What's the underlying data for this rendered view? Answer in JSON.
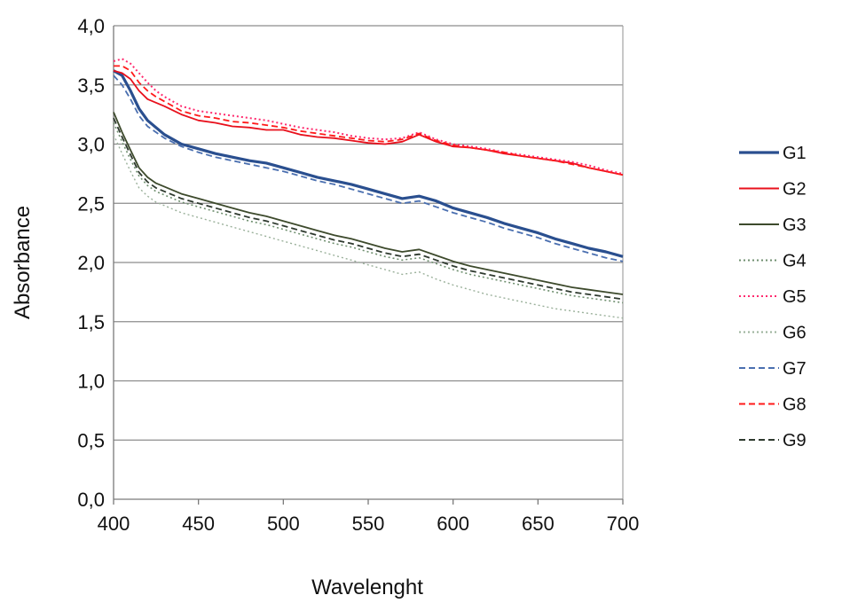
{
  "chart_data": {
    "type": "line",
    "xlabel": "Wavelenght",
    "ylabel": "Absorbance",
    "xlim": [
      400,
      700
    ],
    "ylim": [
      0.0,
      4.0
    ],
    "x_ticks": [
      400,
      450,
      500,
      550,
      600,
      650,
      700
    ],
    "y_ticks": [
      0.0,
      0.5,
      1.0,
      1.5,
      2.0,
      2.5,
      3.0,
      3.5,
      4.0
    ],
    "y_tick_labels": [
      "0,0",
      "0,5",
      "1,0",
      "1,5",
      "2,0",
      "2,5",
      "3,0",
      "3,5",
      "4,0"
    ],
    "grid": "horizontal",
    "legend_position": "right",
    "x": [
      400,
      405,
      410,
      415,
      420,
      425,
      430,
      440,
      450,
      460,
      470,
      480,
      490,
      500,
      510,
      520,
      530,
      540,
      550,
      560,
      570,
      580,
      590,
      600,
      610,
      620,
      630,
      640,
      650,
      660,
      670,
      680,
      690,
      700
    ],
    "series": [
      {
        "name": "G1",
        "color": "#2a4f8f",
        "dash": "solid",
        "width": 3.2,
        "values": [
          3.62,
          3.58,
          3.45,
          3.3,
          3.2,
          3.14,
          3.08,
          3.0,
          2.96,
          2.92,
          2.89,
          2.86,
          2.84,
          2.8,
          2.76,
          2.72,
          2.69,
          2.66,
          2.62,
          2.58,
          2.54,
          2.56,
          2.52,
          2.46,
          2.42,
          2.38,
          2.33,
          2.29,
          2.25,
          2.2,
          2.16,
          2.12,
          2.09,
          2.05
        ]
      },
      {
        "name": "G2",
        "color": "#e8101c",
        "dash": "solid",
        "width": 1.8,
        "values": [
          3.62,
          3.6,
          3.55,
          3.45,
          3.38,
          3.35,
          3.32,
          3.25,
          3.2,
          3.18,
          3.15,
          3.14,
          3.12,
          3.12,
          3.08,
          3.06,
          3.05,
          3.03,
          3.01,
          3.0,
          3.02,
          3.08,
          3.02,
          2.98,
          2.97,
          2.95,
          2.92,
          2.9,
          2.88,
          2.86,
          2.84,
          2.8,
          2.77,
          2.74
        ]
      },
      {
        "name": "G3",
        "color": "#3d4a2c",
        "dash": "solid",
        "width": 1.8,
        "values": [
          3.27,
          3.1,
          2.95,
          2.8,
          2.72,
          2.67,
          2.64,
          2.58,
          2.54,
          2.5,
          2.46,
          2.42,
          2.39,
          2.35,
          2.31,
          2.27,
          2.23,
          2.2,
          2.16,
          2.12,
          2.09,
          2.11,
          2.06,
          2.01,
          1.97,
          1.94,
          1.91,
          1.88,
          1.85,
          1.82,
          1.79,
          1.77,
          1.75,
          1.73
        ]
      },
      {
        "name": "G4",
        "color": "#6f8f6f",
        "dash": "dotted",
        "width": 1.6,
        "values": [
          3.18,
          3.02,
          2.87,
          2.73,
          2.65,
          2.6,
          2.57,
          2.51,
          2.47,
          2.43,
          2.39,
          2.35,
          2.32,
          2.28,
          2.24,
          2.2,
          2.16,
          2.13,
          2.09,
          2.05,
          2.02,
          2.04,
          1.99,
          1.94,
          1.9,
          1.87,
          1.84,
          1.81,
          1.78,
          1.75,
          1.72,
          1.7,
          1.68,
          1.66
        ]
      },
      {
        "name": "G5",
        "color": "#ff2a6e",
        "dash": "dotted",
        "width": 2.0,
        "values": [
          3.7,
          3.72,
          3.68,
          3.6,
          3.52,
          3.45,
          3.4,
          3.32,
          3.28,
          3.26,
          3.24,
          3.22,
          3.2,
          3.17,
          3.14,
          3.12,
          3.1,
          3.07,
          3.05,
          3.04,
          3.05,
          3.1,
          3.04,
          3.0,
          2.98,
          2.96,
          2.93,
          2.91,
          2.89,
          2.87,
          2.85,
          2.82,
          2.78,
          2.75
        ]
      },
      {
        "name": "G6",
        "color": "#9ab09a",
        "dash": "dotted",
        "width": 1.4,
        "values": [
          3.08,
          2.92,
          2.77,
          2.63,
          2.56,
          2.51,
          2.48,
          2.42,
          2.38,
          2.34,
          2.3,
          2.26,
          2.22,
          2.18,
          2.14,
          2.1,
          2.06,
          2.02,
          1.98,
          1.94,
          1.9,
          1.92,
          1.86,
          1.81,
          1.77,
          1.73,
          1.7,
          1.67,
          1.64,
          1.61,
          1.59,
          1.57,
          1.55,
          1.53
        ]
      },
      {
        "name": "G7",
        "color": "#4a6fb0",
        "dash": "dashed",
        "width": 1.8,
        "values": [
          3.58,
          3.5,
          3.38,
          3.24,
          3.15,
          3.1,
          3.05,
          2.98,
          2.93,
          2.89,
          2.86,
          2.83,
          2.8,
          2.77,
          2.73,
          2.69,
          2.66,
          2.62,
          2.58,
          2.54,
          2.5,
          2.52,
          2.47,
          2.42,
          2.38,
          2.34,
          2.29,
          2.25,
          2.21,
          2.16,
          2.12,
          2.08,
          2.04,
          2.01
        ]
      },
      {
        "name": "G8",
        "color": "#ff1a1a",
        "dash": "dashed",
        "width": 1.8,
        "values": [
          3.66,
          3.66,
          3.62,
          3.52,
          3.45,
          3.4,
          3.36,
          3.28,
          3.24,
          3.22,
          3.19,
          3.18,
          3.16,
          3.14,
          3.11,
          3.09,
          3.07,
          3.05,
          3.03,
          3.02,
          3.04,
          3.09,
          3.03,
          2.99,
          2.97,
          2.95,
          2.93,
          2.9,
          2.88,
          2.86,
          2.83,
          2.8,
          2.77,
          2.74
        ]
      },
      {
        "name": "G9",
        "color": "#2f3a2f",
        "dash": "dashed",
        "width": 1.8,
        "values": [
          3.22,
          3.06,
          2.91,
          2.76,
          2.68,
          2.63,
          2.6,
          2.54,
          2.5,
          2.46,
          2.42,
          2.38,
          2.35,
          2.31,
          2.27,
          2.23,
          2.19,
          2.16,
          2.12,
          2.08,
          2.05,
          2.07,
          2.02,
          1.97,
          1.93,
          1.9,
          1.87,
          1.84,
          1.81,
          1.78,
          1.75,
          1.73,
          1.71,
          1.69
        ]
      }
    ]
  }
}
